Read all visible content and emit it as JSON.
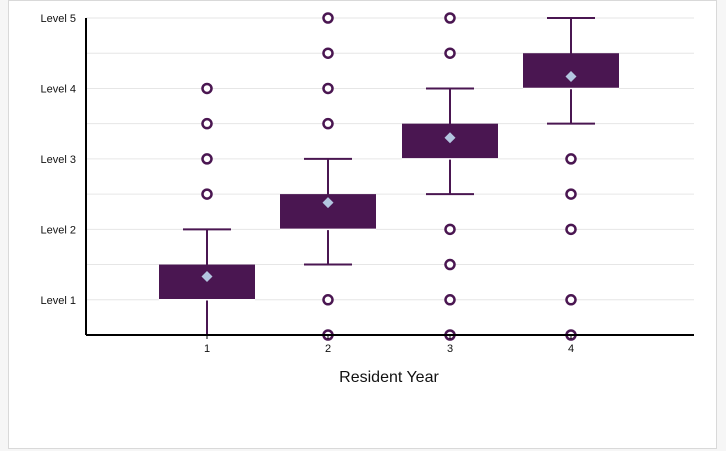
{
  "chart_data": {
    "type": "box",
    "xlabel": "Resident Year",
    "ylabel": "",
    "categories": [
      "1",
      "2",
      "3",
      "4"
    ],
    "y_ticks": [
      {
        "value": 1,
        "label": "Level 1"
      },
      {
        "value": 2,
        "label": "Level 2"
      },
      {
        "value": 3,
        "label": "Level 3"
      },
      {
        "value": 4,
        "label": "Level 4"
      },
      {
        "value": 5,
        "label": "Level 5"
      }
    ],
    "ylim": [
      0.5,
      5
    ],
    "grid": true,
    "colors": {
      "box_fill": "#4a1651",
      "median_line": "#ffffff",
      "whisker": "#4a1651",
      "outlier": "#4a1651",
      "mean_marker": "#b3c6e0",
      "axis": "#000000",
      "grid": "#e6e6e6"
    },
    "series": [
      {
        "category": "1",
        "whisker_low": 0.5,
        "q1": 1.0,
        "median": 1.0,
        "q3": 1.5,
        "whisker_high": 2.0,
        "mean": 1.33,
        "outliers": [
          2.5,
          3.0,
          3.5,
          4.0
        ]
      },
      {
        "category": "2",
        "whisker_low": 1.5,
        "q1": 2.0,
        "median": 2.0,
        "q3": 2.5,
        "whisker_high": 3.0,
        "mean": 2.38,
        "outliers": [
          0.5,
          1.0,
          3.5,
          4.0,
          4.5,
          5.0
        ]
      },
      {
        "category": "3",
        "whisker_low": 2.5,
        "q1": 3.0,
        "median": 3.0,
        "q3": 3.5,
        "whisker_high": 4.0,
        "mean": 3.3,
        "outliers": [
          0.5,
          1.0,
          1.5,
          2.0,
          4.5,
          5.0
        ]
      },
      {
        "category": "4",
        "whisker_low": 3.5,
        "q1": 4.0,
        "median": 4.0,
        "q3": 4.5,
        "whisker_high": 5.0,
        "mean": 4.17,
        "outliers": [
          0.5,
          1.0,
          2.0,
          2.5,
          3.0
        ]
      }
    ]
  }
}
